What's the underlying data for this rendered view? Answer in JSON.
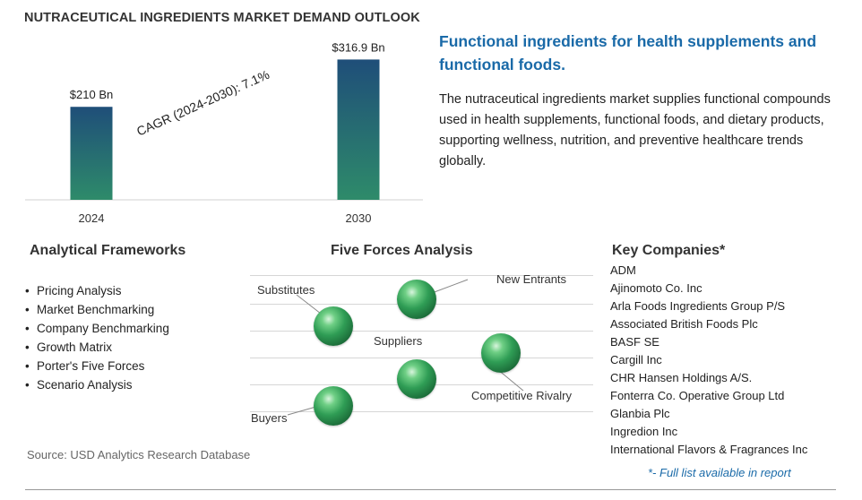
{
  "title": "NUTRACEUTICAL INGREDIENTS MARKET DEMAND OUTLOOK",
  "chart_data": {
    "type": "bar",
    "categories": [
      "2024",
      "2030"
    ],
    "values": [
      210,
      316.9
    ],
    "data_labels": [
      "$210 Bn",
      "$316.9 Bn"
    ],
    "unit": "Bn",
    "annotation": "CAGR (2024-2030):  7.1%",
    "ylim": [
      0,
      340
    ],
    "grid": false,
    "legend": "none",
    "colors": {
      "bar_top": "#1f4e79",
      "bar_bottom": "#2e8b6a"
    }
  },
  "headline": "Functional ingredients for health supplements and functional foods.",
  "description": "The nutraceutical ingredients market supplies functional compounds used in health supplements, functional foods, and dietary products, supporting wellness, nutrition, and preventive healthcare trends globally.",
  "frameworks": {
    "heading": "Analytical Frameworks",
    "items": [
      "Pricing Analysis",
      "Market Benchmarking",
      "Company Benchmarking",
      "Growth Matrix",
      "Porter's Five Forces",
      "Scenario Analysis"
    ]
  },
  "five_forces": {
    "heading": "Five Forces Analysis",
    "labels": {
      "substitutes": "Substitutes",
      "new_entrants": "New Entrants",
      "suppliers": "Suppliers",
      "competitive_rivalry": "Competitive Rivalry",
      "buyers": "Buyers"
    }
  },
  "companies": {
    "heading": "Key Companies*",
    "items": [
      "ADM",
      "Ajinomoto Co. Inc",
      "Arla Foods Ingredients Group P/S",
      "Associated British Foods Plc",
      "BASF SE",
      "Cargill Inc",
      "CHR Hansen Holdings A/S.",
      "Fonterra Co. Operative Group Ltd",
      "Glanbia Plc",
      "Ingredion Inc",
      "International Flavors & Fragrances Inc"
    ],
    "note": "*- Full list available in report"
  },
  "source": "Source: USD Analytics Research Database",
  "colors": {
    "accent": "#1a6aa8",
    "sphere": "#2f9d55"
  }
}
